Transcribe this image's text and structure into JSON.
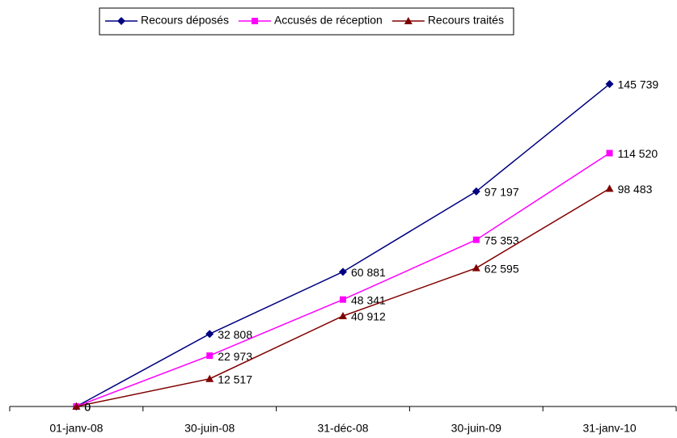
{
  "chart_data": {
    "type": "line",
    "categories": [
      "01-janv-08",
      "30-juin-08",
      "31-déc-08",
      "30-juin-09",
      "31-janv-10"
    ],
    "series": [
      {
        "name": "Recours déposés",
        "color": "#000080",
        "marker": "diamond",
        "values": [
          0,
          32808,
          60881,
          97197,
          145739
        ],
        "value_labels": [
          "0",
          "32 808",
          "60 881",
          "97 197",
          "145 739"
        ]
      },
      {
        "name": "Accusés de réception",
        "color": "#ff00ff",
        "marker": "square",
        "values": [
          0,
          22973,
          48341,
          75353,
          114520
        ],
        "value_labels": [
          "0",
          "22 973",
          "48 341",
          "75 353",
          "114 520"
        ]
      },
      {
        "name": "Recours traités",
        "color": "#800000",
        "marker": "triangle",
        "values": [
          0,
          12517,
          40912,
          62595,
          98483
        ],
        "value_labels": [
          "0",
          "12 517",
          "40 912",
          "62 595",
          "98 483"
        ]
      }
    ],
    "ylim": [
      0,
      160000
    ],
    "legend": "top"
  }
}
